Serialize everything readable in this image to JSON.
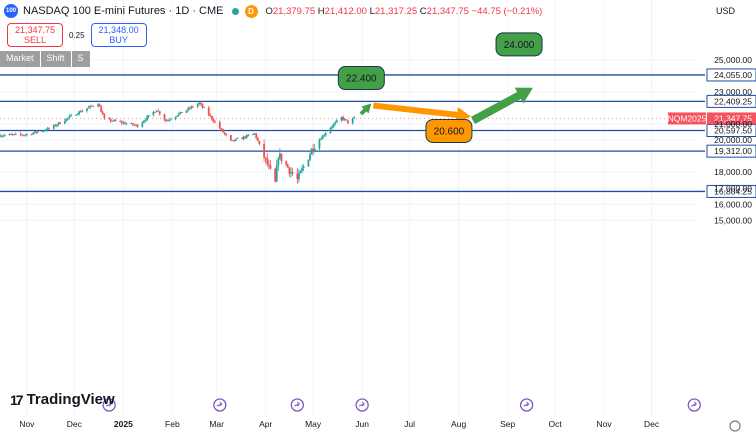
{
  "header": {
    "logo_text": "100",
    "title": "NASDAQ 100 E-mini Futures · 1D · CME",
    "delay_badge": "D",
    "open_label": "O",
    "open": "21,379.75",
    "high_label": "H",
    "high": "21,412.00",
    "low_label": "L",
    "low": "21,317.25",
    "close_label": "C",
    "close": "21,347.75",
    "change": "−44.75 (−0.21%)"
  },
  "trade": {
    "sell_price": "21,347.75",
    "sell_label": "SELL",
    "spread": "0.25",
    "buy_price": "21,348.00",
    "buy_label": "BUY"
  },
  "order_bar": {
    "items": [
      "Market",
      "Shift",
      "S"
    ]
  },
  "currency": "USD",
  "branding": "TradingView",
  "colors": {
    "candle_up": "#26a69a",
    "candle_down": "#ef5350",
    "level_line": "#1e4fa0",
    "arrow_green": "#43a047",
    "arrow_orange": "#ff9800",
    "price_badge": "#f7525f"
  },
  "chart_data": {
    "type": "candlestick",
    "y_scale": "linear",
    "ylim": [
      14800,
      26000
    ],
    "y_ticks": [
      "25,000.00",
      "23,000.00",
      "21,000.00",
      "20,000.00",
      "18,000.00",
      "17,000.00",
      "16,000.00",
      "15,000.00"
    ],
    "y_tick_values": [
      25000,
      23000,
      21000,
      20000,
      18000,
      17000,
      16000,
      15000
    ],
    "x_ticks": [
      "Nov",
      "Dec",
      "2025",
      "Feb",
      "Mar",
      "Apr",
      "May",
      "Jun",
      "Jul",
      "Aug",
      "Sep",
      "Oct",
      "Nov",
      "Dec"
    ],
    "x_tick_dates": [
      "2024-11-01",
      "2024-12-01",
      "2025-01-01",
      "2025-02-01",
      "2025-03-01",
      "2025-04-01",
      "2025-05-01",
      "2025-06-01",
      "2025-07-01",
      "2025-08-01",
      "2025-09-01",
      "2025-10-01",
      "2025-11-01",
      "2025-12-01"
    ],
    "x_range": [
      "2024-10-15",
      "2025-12-31"
    ],
    "horizontal_levels": [
      {
        "value": 24055.0,
        "label": "24,055.00"
      },
      {
        "value": 22409.25,
        "label": "22,409.25"
      },
      {
        "value": 20597.5,
        "label": "20,597.50"
      },
      {
        "value": 19312.0,
        "label": "19,312.00"
      },
      {
        "value": 16804.25,
        "label": "16,804.25"
      }
    ],
    "last_price": {
      "symbol": "NQM2025",
      "value": 21347.75,
      "label": "21,347.75"
    },
    "price_path_anchors": [
      {
        "date": "2024-10-15",
        "close": 20300
      },
      {
        "date": "2024-11-01",
        "close": 20350
      },
      {
        "date": "2024-11-15",
        "close": 20700
      },
      {
        "date": "2024-12-01",
        "close": 21600
      },
      {
        "date": "2024-12-16",
        "close": 22300
      },
      {
        "date": "2024-12-20",
        "close": 21300
      },
      {
        "date": "2025-01-10",
        "close": 20900
      },
      {
        "date": "2025-01-22",
        "close": 21900
      },
      {
        "date": "2025-01-28",
        "close": 21200
      },
      {
        "date": "2025-02-18",
        "close": 22300
      },
      {
        "date": "2025-03-10",
        "close": 19900
      },
      {
        "date": "2025-03-25",
        "close": 20400
      },
      {
        "date": "2025-04-07",
        "close": 17300
      },
      {
        "date": "2025-04-09",
        "close": 19100
      },
      {
        "date": "2025-04-21",
        "close": 17500
      },
      {
        "date": "2025-05-01",
        "close": 19600
      },
      {
        "date": "2025-05-12",
        "close": 20800
      },
      {
        "date": "2025-05-19",
        "close": 21400
      },
      {
        "date": "2025-05-23",
        "close": 21100
      },
      {
        "date": "2025-05-27",
        "close": 21347.75
      }
    ],
    "projection": {
      "points": [
        {
          "date": "2025-05-30",
          "value": 21000,
          "color": "orange"
        },
        {
          "date": "2025-06-03",
          "value": 22400,
          "color": "green",
          "label": "22.400"
        },
        {
          "date": "2025-08-05",
          "value": 20600,
          "color": "orange",
          "label": "20.600"
        },
        {
          "date": "2025-09-12",
          "value": 24000,
          "color": "green",
          "label": "24.000"
        }
      ]
    }
  }
}
